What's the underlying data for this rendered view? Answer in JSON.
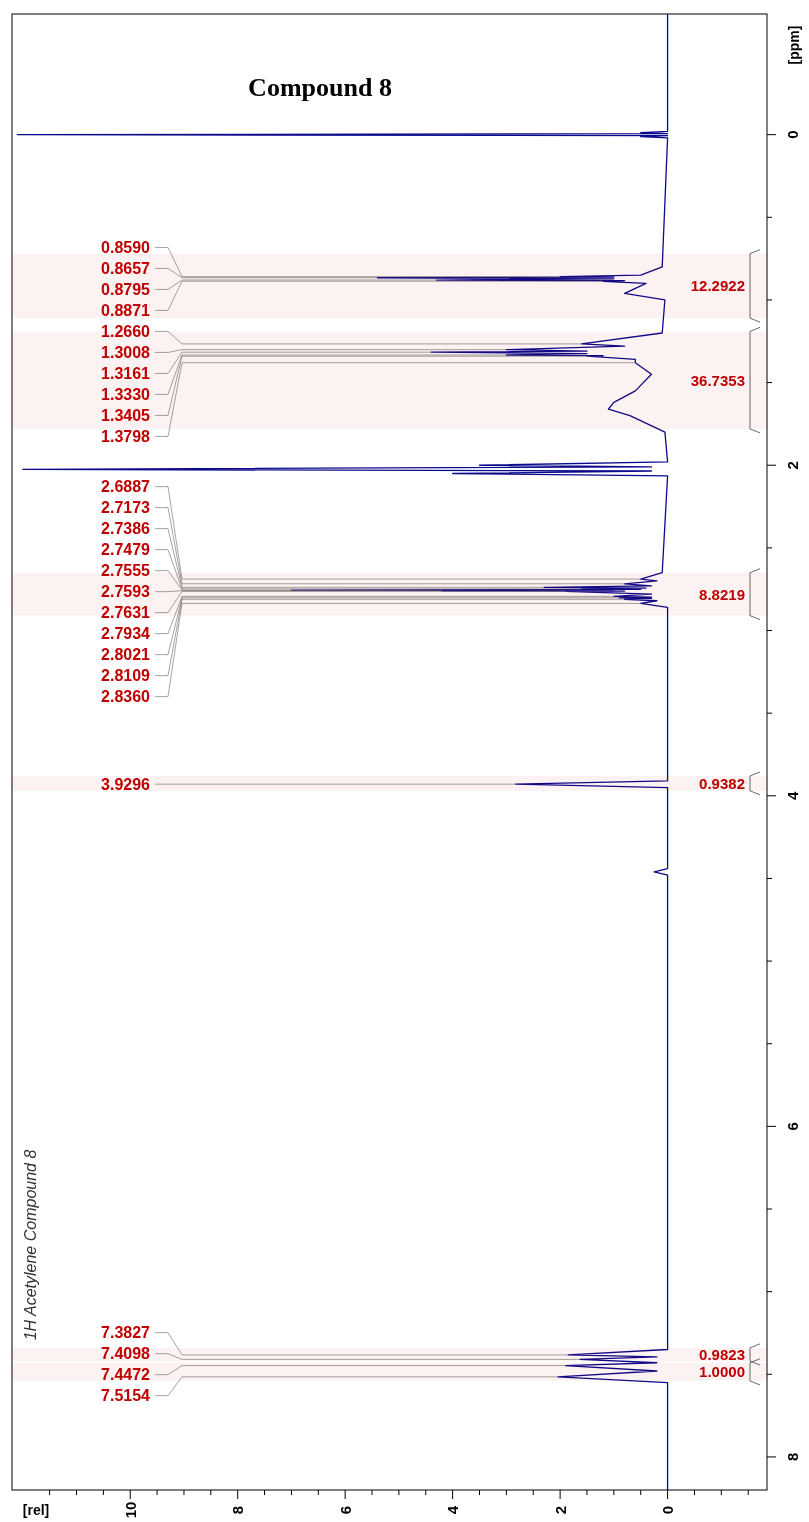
{
  "chart_data": {
    "type": "line",
    "title": "Compound 8",
    "subtitle": "1H Acetylene Compound 8",
    "xlabel": "[rel]",
    "ylabel": "[ppm]",
    "xlim": [
      12.2,
      -1.85
    ],
    "ylim": [
      8.2,
      -0.73
    ],
    "yticks": [
      0,
      {
        "value": 0.5,
        "label": null
      },
      {
        "value": 1,
        "label": null
      },
      {
        "value": 1.5,
        "label": null
      },
      2,
      {
        "value": 2.5,
        "label": null
      },
      {
        "value": 3,
        "label": null
      },
      {
        "value": 3.5,
        "label": null
      },
      4,
      {
        "value": 4.5,
        "label": null
      },
      {
        "value": 5,
        "label": null
      },
      {
        "value": 5.5,
        "label": null
      },
      6,
      {
        "value": 6.5,
        "label": null
      },
      {
        "value": 7,
        "label": null
      },
      {
        "value": 7.5,
        "label": null
      },
      8
    ],
    "xticks": [
      {
        "value": -1.5,
        "label": null
      },
      {
        "value": -1,
        "label": null
      },
      {
        "value": -0.5,
        "label": null
      },
      0,
      {
        "value": 0.5,
        "label": null
      },
      {
        "value": 1,
        "label": null
      },
      {
        "value": 1.5,
        "label": null
      },
      2,
      {
        "value": 2.5,
        "label": null
      },
      {
        "value": 3,
        "label": null
      },
      {
        "value": 3.5,
        "label": null
      },
      4,
      {
        "value": 4.5,
        "label": null
      },
      {
        "value": 5,
        "label": null
      },
      {
        "value": 5.5,
        "label": null
      },
      6,
      {
        "value": 6.5,
        "label": null
      },
      {
        "value": 7,
        "label": null
      },
      {
        "value": 7.5,
        "label": null
      },
      8,
      {
        "value": 8.5,
        "label": null
      },
      {
        "value": 9,
        "label": null
      },
      {
        "value": 9.5,
        "label": null
      },
      10,
      {
        "value": 10.5,
        "label": null
      },
      {
        "value": 11,
        "label": null
      },
      {
        "value": 11.5,
        "label": null
      }
    ],
    "series": [
      {
        "color": "#0a0a8c",
        "x": [
          0,
          0,
          0.5,
          0,
          12.1,
          0,
          0.5,
          0,
          0.1,
          0.5,
          2.0,
          1.0,
          5.4,
          1.0,
          4.3,
          0.8,
          1.2,
          0.4,
          0.8,
          0.05,
          0.1,
          1.6,
          0.8,
          3.0,
          1.5,
          4.4,
          1.5,
          3.0,
          1.2,
          1.5,
          0.6,
          0.6,
          0.3,
          0.6,
          1.0,
          1.1,
          0.7,
          0.05,
          0,
          3.5,
          0.3,
          12.0,
          0.3,
          4.0,
          0,
          0.1,
          0.5,
          0.2,
          0.8,
          0.3,
          2.3,
          0.4,
          1.6,
          0.5,
          7.0,
          1.0,
          4.2,
          0.8,
          1.9,
          0.3,
          1.0,
          0.3,
          0.9,
          0.3,
          0.8,
          0.2,
          0.5,
          0,
          0,
          2.83,
          0,
          0,
          0.25,
          0,
          0,
          1.85,
          0.2,
          1.63,
          0.2,
          1.9,
          0.2,
          2.04,
          0,
          0
        ],
        "values": [
          -0.73,
          -0.02,
          -0.012,
          -0.006,
          0,
          0.006,
          0.012,
          0.02,
          0.8,
          0.85,
          0.859,
          0.862,
          0.8657,
          0.872,
          0.8795,
          0.883,
          0.8871,
          0.9,
          0.96,
          1.0,
          1.2,
          1.266,
          1.28,
          1.3008,
          1.31,
          1.3161,
          1.325,
          1.333,
          1.337,
          1.3405,
          1.36,
          1.3798,
          1.45,
          1.55,
          1.62,
          1.66,
          1.7,
          1.8,
          1.98,
          2.0,
          2.01,
          2.025,
          2.035,
          2.05,
          2.065,
          2.65,
          2.6887,
          2.7,
          2.7173,
          2.73,
          2.7386,
          2.743,
          2.7479,
          2.751,
          2.7555,
          2.7575,
          2.7593,
          2.7612,
          2.7631,
          2.78,
          2.7934,
          2.798,
          2.8021,
          2.806,
          2.8109,
          2.82,
          2.836,
          2.86,
          3.91,
          3.9296,
          3.95,
          4.44,
          4.46,
          4.48,
          7.35,
          7.3827,
          7.395,
          7.4098,
          7.43,
          7.4472,
          7.48,
          7.5154,
          7.55,
          8.2
        ]
      }
    ],
    "annotations": [
      {
        "text": "0.8590",
        "x": 2.0,
        "y": 0.859
      },
      {
        "text": "0.8657",
        "x": 5.4,
        "y": 0.8657
      },
      {
        "text": "0.8795",
        "x": 4.3,
        "y": 0.8795
      },
      {
        "text": "0.8871",
        "x": 1.2,
        "y": 0.8871
      },
      {
        "text": "1.2660",
        "x": 1.6,
        "y": 1.266
      },
      {
        "text": "1.3008",
        "x": 3.0,
        "y": 1.3008
      },
      {
        "text": "1.3161",
        "x": 4.4,
        "y": 1.3161
      },
      {
        "text": "1.3330",
        "x": 3.0,
        "y": 1.333
      },
      {
        "text": "1.3405",
        "x": 1.5,
        "y": 1.3405
      },
      {
        "text": "1.3798",
        "x": 0.6,
        "y": 1.3798
      },
      {
        "text": "2.6887",
        "x": 0.5,
        "y": 2.6887
      },
      {
        "text": "2.7173",
        "x": 0.8,
        "y": 2.7173
      },
      {
        "text": "2.7386",
        "x": 2.3,
        "y": 2.7386
      },
      {
        "text": "2.7479",
        "x": 1.6,
        "y": 2.7479
      },
      {
        "text": "2.7555",
        "x": 7.0,
        "y": 2.7555
      },
      {
        "text": "2.7593",
        "x": 4.2,
        "y": 2.7593
      },
      {
        "text": "2.7631",
        "x": 1.9,
        "y": 2.7631
      },
      {
        "text": "2.7934",
        "x": 1.0,
        "y": 2.7934
      },
      {
        "text": "2.8021",
        "x": 0.9,
        "y": 2.8021
      },
      {
        "text": "2.8109",
        "x": 0.8,
        "y": 2.8109
      },
      {
        "text": "2.8360",
        "x": 0.5,
        "y": 2.836
      },
      {
        "text": "3.9296",
        "x": 2.83,
        "y": 3.9296
      },
      {
        "text": "7.3827",
        "x": 1.85,
        "y": 7.3827
      },
      {
        "text": "7.4098",
        "x": 1.63,
        "y": 7.4098
      },
      {
        "text": "7.4472",
        "x": 1.9,
        "y": 7.4472
      },
      {
        "text": "7.5154",
        "x": 2.04,
        "y": 7.5154
      }
    ],
    "bands": [
      {
        "axis": "y",
        "from": 0.72,
        "to": 1.11,
        "label": "12.2922",
        "color": "#c00000"
      },
      {
        "axis": "y",
        "from": 1.19,
        "to": 1.78,
        "label": "36.7353",
        "color": "#c00000"
      },
      {
        "axis": "y",
        "from": 2.65,
        "to": 2.91,
        "label": "8.8219",
        "color": "#c00000"
      },
      {
        "axis": "y",
        "from": 3.88,
        "to": 3.97,
        "label": "0.9382",
        "color": "#c00000"
      },
      {
        "axis": "y",
        "from": 7.34,
        "to": 7.42,
        "label": "0.9823",
        "color": "#c00000"
      },
      {
        "axis": "y",
        "from": 7.43,
        "to": 7.54,
        "label": "1.0000",
        "color": "#c00000"
      }
    ],
    "grid": false
  }
}
